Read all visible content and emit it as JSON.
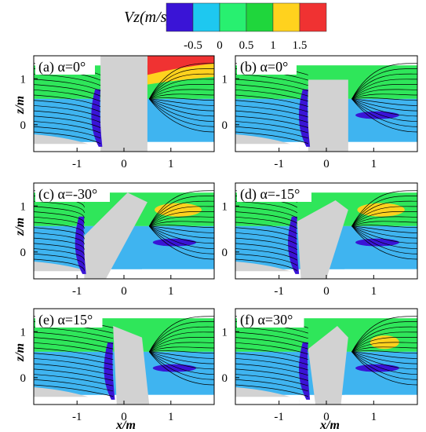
{
  "colorbar": {
    "label": "Vz(m/s)",
    "ticks": [
      "-0.5",
      "0",
      "0.5",
      "1",
      "1.5"
    ],
    "colors": [
      "#3a14d6",
      "#1ec8f0",
      "#28f070",
      "#1fd63c",
      "#ffd21e",
      "#f03232"
    ]
  },
  "axes": {
    "xlabel": "x/m",
    "ylabel": "z/m",
    "xticks": [
      "-1",
      "0",
      "1"
    ],
    "yticks": [
      "1",
      "0"
    ]
  },
  "panels": [
    {
      "label": "(a) α=0°"
    },
    {
      "label": "(b) α=0°"
    },
    {
      "label": "(c) α=-30°"
    },
    {
      "label": "(d) α=-15°"
    },
    {
      "label": "(e) α=15°"
    },
    {
      "label": "(f) α=30°"
    }
  ],
  "colors": {
    "field_blue": "#3fb4f0",
    "field_green": "#2fe65a",
    "field_dark_green": "#1ec83c",
    "obstacle_gray": "#d2d2d2",
    "vortex_blue": "#3a14d6",
    "streamline": "#000000"
  }
}
